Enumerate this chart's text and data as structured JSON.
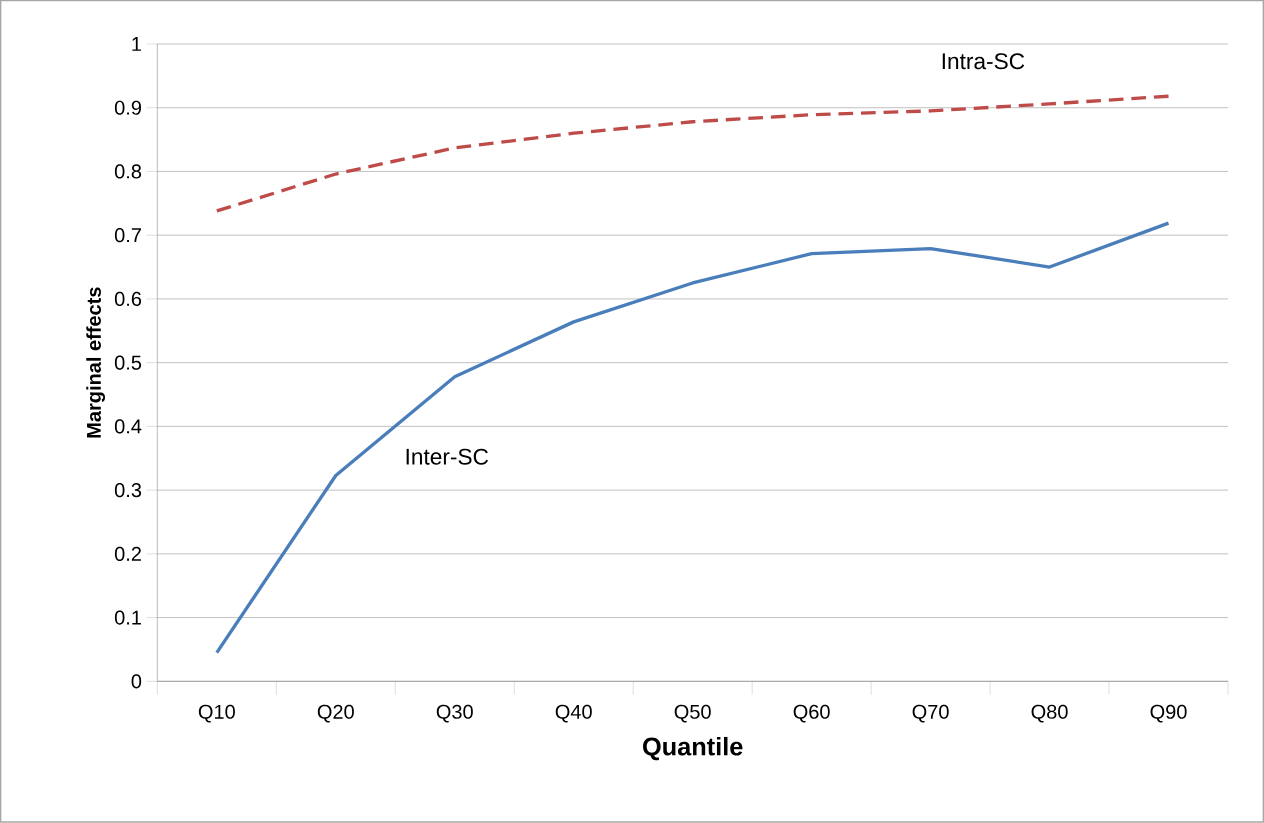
{
  "chart_data": {
    "type": "line",
    "xlabel": "Quantile",
    "ylabel": "Marginal effects",
    "categories": [
      "Q10",
      "Q20",
      "Q30",
      "Q40",
      "Q50",
      "Q60",
      "Q70",
      "Q80",
      "Q90"
    ],
    "series": [
      {
        "name": "Inter-SC",
        "color": "#4a7ebb",
        "line_style": "solid",
        "values": [
          0.045,
          0.323,
          0.478,
          0.564,
          0.625,
          0.671,
          0.679,
          0.65,
          0.719
        ]
      },
      {
        "name": "Intra-SC",
        "color": "#be4b48",
        "line_style": "dashed",
        "values": [
          0.738,
          0.796,
          0.837,
          0.86,
          0.878,
          0.889,
          0.895,
          0.906,
          0.918
        ]
      }
    ],
    "ylim": [
      0,
      1
    ],
    "yticks": [
      0,
      0.1,
      0.2,
      0.3,
      0.4,
      0.5,
      0.6,
      0.7,
      0.8,
      0.9,
      1
    ],
    "grid": "y",
    "legend": false,
    "marker": "none"
  }
}
